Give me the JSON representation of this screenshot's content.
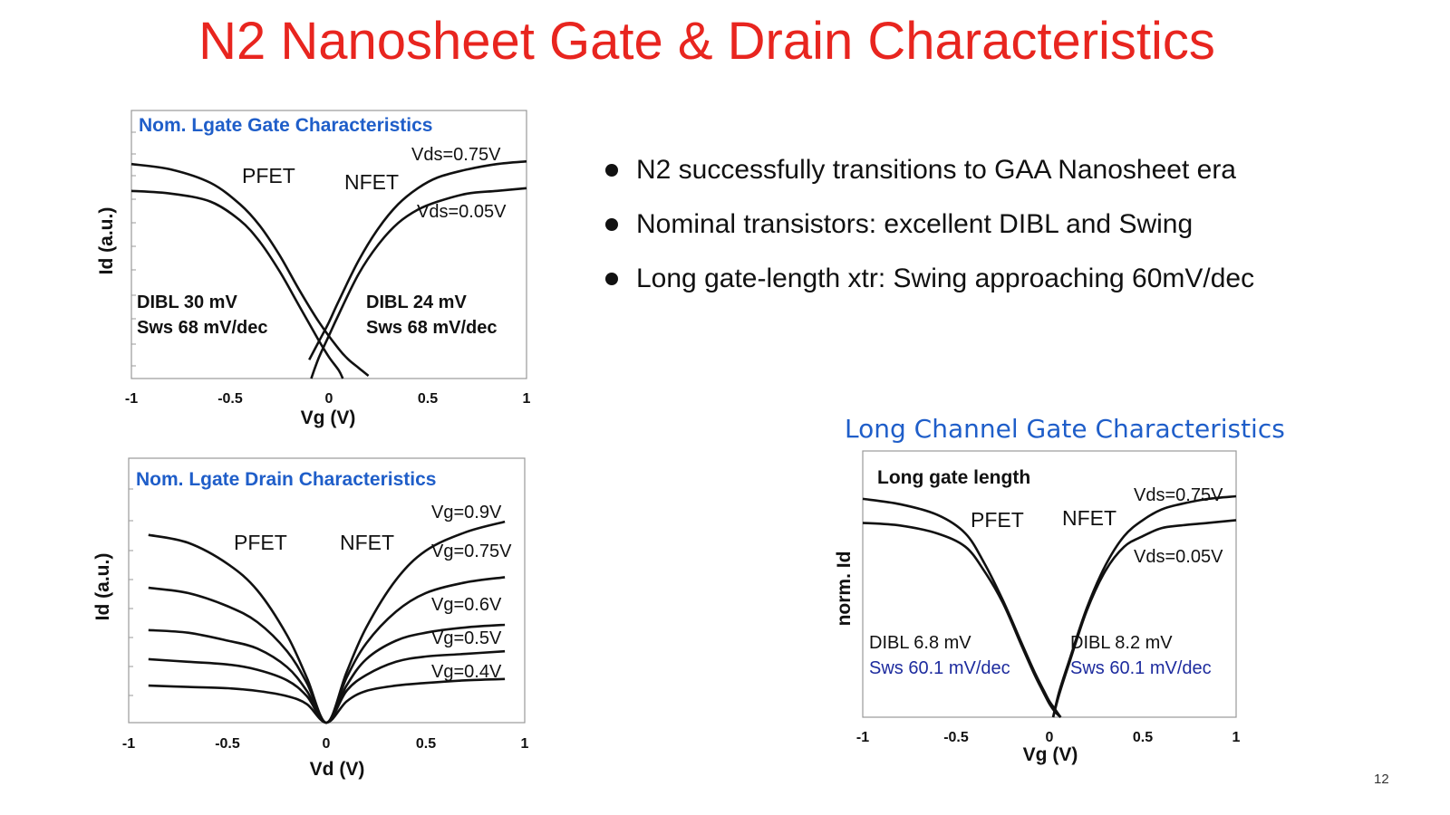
{
  "slide": {
    "title": "N2 Nanosheet Gate & Drain Characteristics",
    "page_number": "12",
    "bullets": [
      "N2 successfully transitions to GAA Nanosheet era",
      "Nominal transistors:  excellent DIBL and Swing",
      "Long gate-length xtr:  Swing approaching 60mV/dec"
    ],
    "long_channel_caption": "Long Channel Gate Characteristics",
    "colors": {
      "title": "#e8251f",
      "chart_title": "#1f5ec9",
      "sws_blue": "#1d2b9e",
      "curve": "#111111"
    }
  },
  "chart_data": [
    {
      "type": "line",
      "title": "Nom. Lgate Gate Characteristics",
      "xlabel": "Vg (V)",
      "ylabel": "Id (a.u.)",
      "xlim": [
        -1,
        1
      ],
      "ylim": [
        0,
        1
      ],
      "xticks": [
        "-1",
        "-0.5",
        "0",
        "0.5",
        "1"
      ],
      "legend_labels": [
        "PFET",
        "NFET",
        "Vds=0.75V",
        "Vds=0.05V"
      ],
      "annotations": [
        "DIBL 30 mV",
        "Sws 68 mV/dec",
        "DIBL 24 mV",
        "Sws 68 mV/dec"
      ],
      "series": [
        {
          "name": "PFET Vds=0.75V",
          "x": [
            -1,
            -0.8,
            -0.6,
            -0.45,
            -0.35,
            -0.25,
            -0.15,
            -0.05,
            0.05,
            0.1,
            0.15,
            0.2
          ],
          "y": [
            0.8,
            0.78,
            0.73,
            0.65,
            0.57,
            0.46,
            0.33,
            0.21,
            0.11,
            0.07,
            0.04,
            0.01
          ]
        },
        {
          "name": "PFET Vds=0.05V",
          "x": [
            -1,
            -0.8,
            -0.6,
            -0.45,
            -0.35,
            -0.25,
            -0.15,
            -0.05,
            0.0,
            0.05,
            0.07
          ],
          "y": [
            0.7,
            0.69,
            0.66,
            0.59,
            0.51,
            0.4,
            0.27,
            0.14,
            0.08,
            0.03,
            0.0
          ]
        },
        {
          "name": "NFET Vds=0.75V",
          "x": [
            -0.1,
            -0.05,
            0.0,
            0.05,
            0.15,
            0.25,
            0.35,
            0.45,
            0.55,
            0.7,
            0.85,
            1.0
          ],
          "y": [
            0.07,
            0.14,
            0.21,
            0.29,
            0.44,
            0.56,
            0.65,
            0.71,
            0.75,
            0.78,
            0.8,
            0.81
          ]
        },
        {
          "name": "NFET Vds=0.05V",
          "x": [
            -0.09,
            -0.05,
            0.0,
            0.05,
            0.15,
            0.25,
            0.35,
            0.45,
            0.55,
            0.7,
            0.85,
            1.0
          ],
          "y": [
            0.0,
            0.08,
            0.16,
            0.24,
            0.39,
            0.5,
            0.58,
            0.63,
            0.66,
            0.69,
            0.7,
            0.71
          ]
        }
      ]
    },
    {
      "type": "line",
      "title": "Nom. Lgate Drain Characteristics",
      "xlabel": "Vd (V)",
      "ylabel": "Id (a.u.)",
      "xlim": [
        -1,
        1
      ],
      "ylim": [
        0,
        1
      ],
      "xticks": [
        "-1",
        "-0.5",
        "0",
        "0.5",
        "1"
      ],
      "legend_labels": [
        "PFET",
        "NFET",
        "Vg=0.9V",
        "Vg=0.75V",
        "Vg=0.6V",
        "Vg=0.5V",
        "Vg=0.4V"
      ],
      "series": [
        {
          "name": "Vg=0.9V",
          "x": [
            -0.9,
            -0.7,
            -0.5,
            -0.35,
            -0.2,
            -0.1,
            0,
            0.1,
            0.2,
            0.35,
            0.5,
            0.7,
            0.9
          ],
          "y": [
            0.71,
            0.68,
            0.6,
            0.5,
            0.33,
            0.17,
            0.0,
            0.19,
            0.36,
            0.54,
            0.65,
            0.72,
            0.76
          ]
        },
        {
          "name": "Vg=0.75V",
          "x": [
            -0.9,
            -0.7,
            -0.5,
            -0.35,
            -0.2,
            -0.1,
            0,
            0.1,
            0.2,
            0.35,
            0.5,
            0.7,
            0.9
          ],
          "y": [
            0.51,
            0.49,
            0.44,
            0.38,
            0.27,
            0.15,
            0.0,
            0.17,
            0.3,
            0.42,
            0.49,
            0.53,
            0.55
          ]
        },
        {
          "name": "Vg=0.6V",
          "x": [
            -0.9,
            -0.7,
            -0.5,
            -0.35,
            -0.2,
            -0.1,
            0,
            0.1,
            0.2,
            0.35,
            0.5,
            0.7,
            0.9
          ],
          "y": [
            0.35,
            0.34,
            0.31,
            0.28,
            0.21,
            0.12,
            0.0,
            0.14,
            0.24,
            0.31,
            0.34,
            0.36,
            0.37
          ]
        },
        {
          "name": "Vg=0.5V",
          "x": [
            -0.9,
            -0.7,
            -0.5,
            -0.35,
            -0.2,
            -0.1,
            0,
            0.1,
            0.2,
            0.35,
            0.5,
            0.7,
            0.9
          ],
          "y": [
            0.24,
            0.23,
            0.22,
            0.2,
            0.16,
            0.1,
            0.0,
            0.12,
            0.18,
            0.23,
            0.25,
            0.26,
            0.27
          ]
        },
        {
          "name": "Vg=0.4V",
          "x": [
            -0.9,
            -0.7,
            -0.5,
            -0.35,
            -0.2,
            -0.1,
            0,
            0.1,
            0.2,
            0.35,
            0.5,
            0.7,
            0.9
          ],
          "y": [
            0.14,
            0.135,
            0.13,
            0.12,
            0.1,
            0.07,
            0.0,
            0.08,
            0.12,
            0.14,
            0.15,
            0.16,
            0.165
          ]
        }
      ]
    },
    {
      "type": "line",
      "title": "Long gate length",
      "xlabel": "Vg (V)",
      "ylabel": "norm. Id",
      "xlim": [
        -1,
        1
      ],
      "ylim": [
        0,
        1
      ],
      "xticks": [
        "-1",
        "-0.5",
        "0",
        "0.5",
        "1"
      ],
      "legend_labels": [
        "PFET",
        "NFET",
        "Vds=0.75V",
        "Vds=0.05V"
      ],
      "annotations": [
        "DIBL 6.8 mV",
        "Sws 60.1 mV/dec",
        "DIBL 8.2 mV",
        "Sws 60.1 mV/dec"
      ],
      "series": [
        {
          "name": "PFET Vds=0.75V",
          "x": [
            -1,
            -0.8,
            -0.6,
            -0.45,
            -0.35,
            -0.25,
            -0.15,
            -0.08,
            -0.03,
            0.0,
            0.03,
            0.06
          ],
          "y": [
            0.82,
            0.8,
            0.76,
            0.69,
            0.58,
            0.44,
            0.28,
            0.17,
            0.1,
            0.06,
            0.03,
            0.0
          ]
        },
        {
          "name": "PFET Vds=0.05V",
          "x": [
            -1,
            -0.8,
            -0.6,
            -0.45,
            -0.35,
            -0.25,
            -0.15,
            -0.08,
            -0.03,
            0.0,
            0.03,
            0.06
          ],
          "y": [
            0.73,
            0.72,
            0.69,
            0.64,
            0.55,
            0.43,
            0.27,
            0.16,
            0.09,
            0.05,
            0.02,
            0.0
          ]
        },
        {
          "name": "NFET Vds=0.75V",
          "x": [
            0.02,
            0.05,
            0.1,
            0.2,
            0.3,
            0.4,
            0.5,
            0.6,
            0.7,
            0.85,
            1.0
          ],
          "y": [
            0.0,
            0.09,
            0.2,
            0.41,
            0.57,
            0.68,
            0.74,
            0.78,
            0.8,
            0.82,
            0.83
          ]
        },
        {
          "name": "NFET Vds=0.05V",
          "x": [
            0.02,
            0.05,
            0.1,
            0.2,
            0.3,
            0.4,
            0.5,
            0.6,
            0.7,
            0.85,
            1.0
          ],
          "y": [
            0.0,
            0.08,
            0.19,
            0.4,
            0.55,
            0.64,
            0.68,
            0.71,
            0.72,
            0.73,
            0.74
          ]
        }
      ]
    }
  ]
}
